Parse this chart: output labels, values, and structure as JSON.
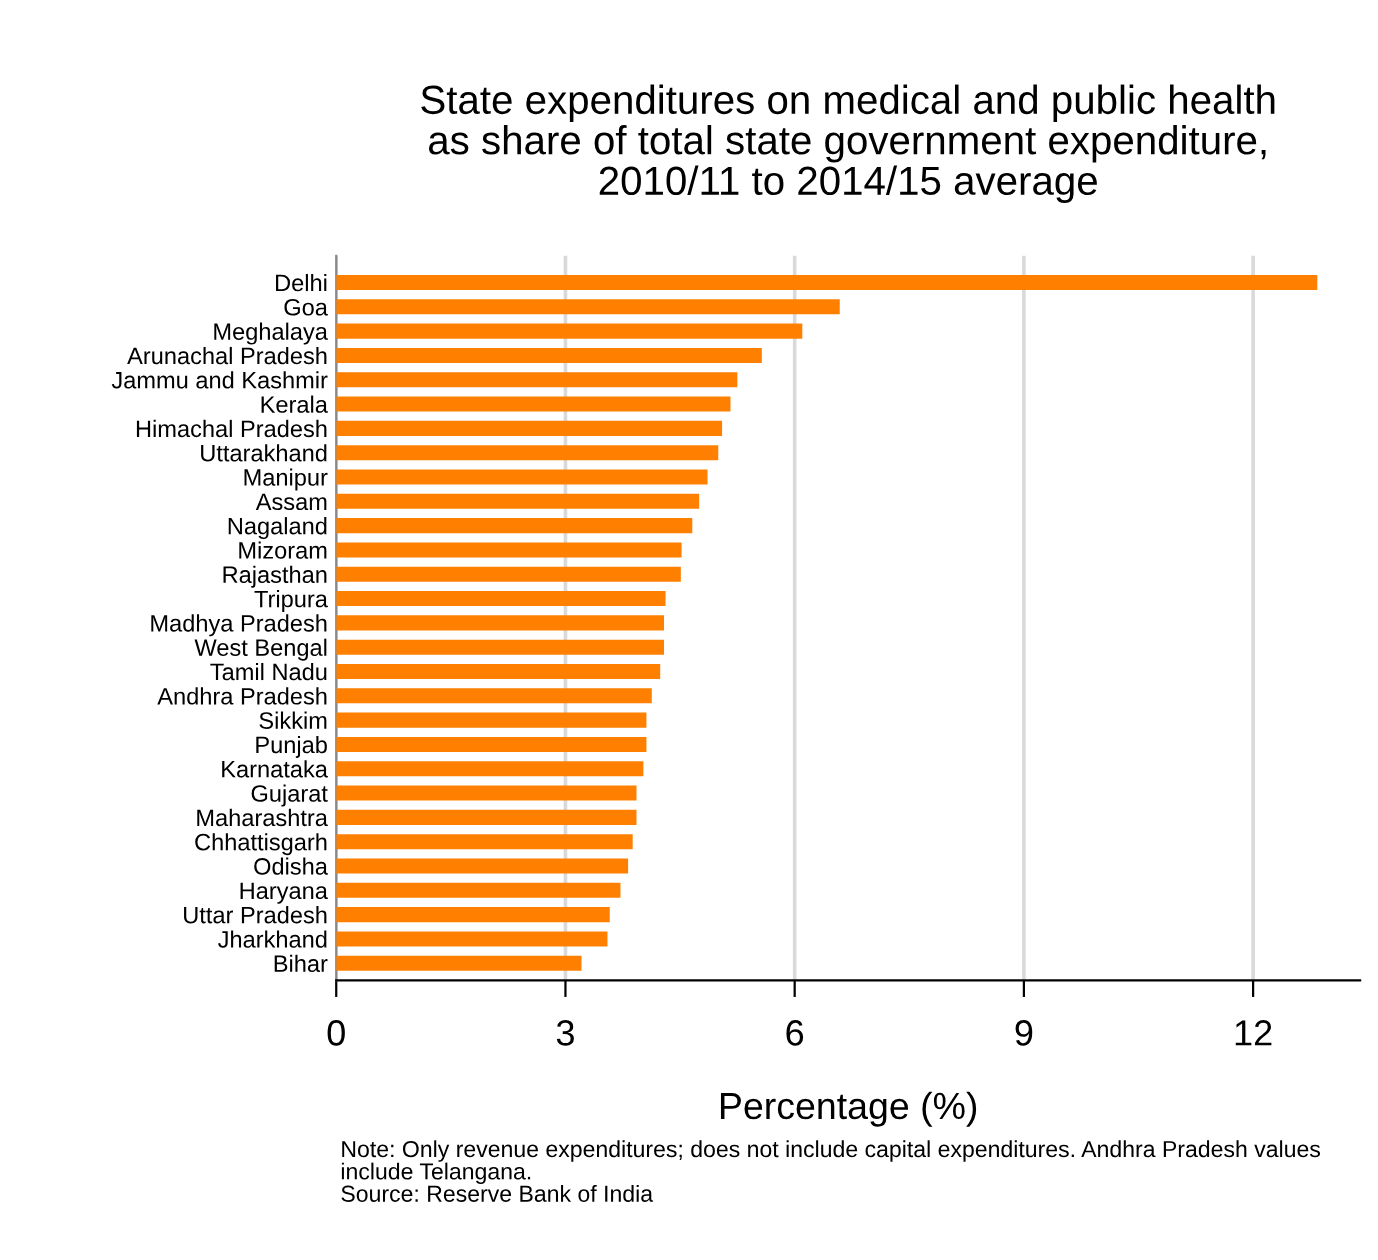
{
  "chart_data": {
    "type": "bar",
    "orientation": "horizontal",
    "title": "State expenditures on medical and public health\nas share of total state government expenditure,\n2010/11 to 2014/15 average",
    "xlabel": "Percentage (%)",
    "categories": [
      "Delhi",
      "Goa",
      "Meghalaya",
      "Arunachal Pradesh",
      "Jammu and Kashmir",
      "Kerala",
      "Himachal Pradesh",
      "Uttarakhand",
      "Manipur",
      "Assam",
      "Nagaland",
      "Mizoram",
      "Rajasthan",
      "Tripura",
      "Madhya Pradesh",
      "West Bengal",
      "Tamil Nadu",
      "Andhra Pradesh",
      "Sikkim",
      "Punjab",
      "Karnataka",
      "Gujarat",
      "Maharashtra",
      "Chhattisgarh",
      "Odisha",
      "Haryana",
      "Uttar Pradesh",
      "Jharkhand",
      "Bihar"
    ],
    "values": [
      12.84,
      6.59,
      6.1,
      5.57,
      5.25,
      5.16,
      5.05,
      5.0,
      4.86,
      4.75,
      4.66,
      4.52,
      4.51,
      4.31,
      4.29,
      4.29,
      4.24,
      4.13,
      4.06,
      4.06,
      4.02,
      3.93,
      3.93,
      3.88,
      3.82,
      3.72,
      3.58,
      3.55,
      3.21
    ],
    "color": "#ff8000",
    "xlim": [
      0,
      13.4
    ],
    "xticks": [
      0,
      3,
      6,
      9,
      12
    ],
    "grid": "x",
    "annotations": [
      "Note: Only revenue expenditures; does not include capital expenditures. Andhra Pradesh values include Telangana.\nSource: Reserve Bank of India"
    ]
  }
}
